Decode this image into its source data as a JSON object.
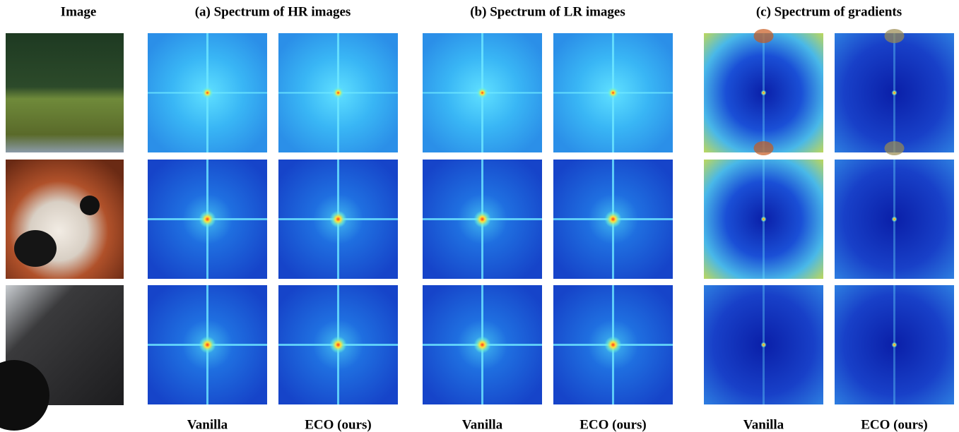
{
  "header": {
    "image": "Image"
  },
  "groups": [
    {
      "title": "(a) Spectrum of HR images",
      "columns": [
        "Vanilla",
        "ECO (ours)"
      ]
    },
    {
      "title": "(b) Spectrum of LR images",
      "columns": [
        "Vanilla",
        "ECO (ours)"
      ]
    },
    {
      "title": "(c) Spectrum of gradients",
      "columns": [
        "Vanilla",
        "ECO (ours)"
      ]
    }
  ]
}
